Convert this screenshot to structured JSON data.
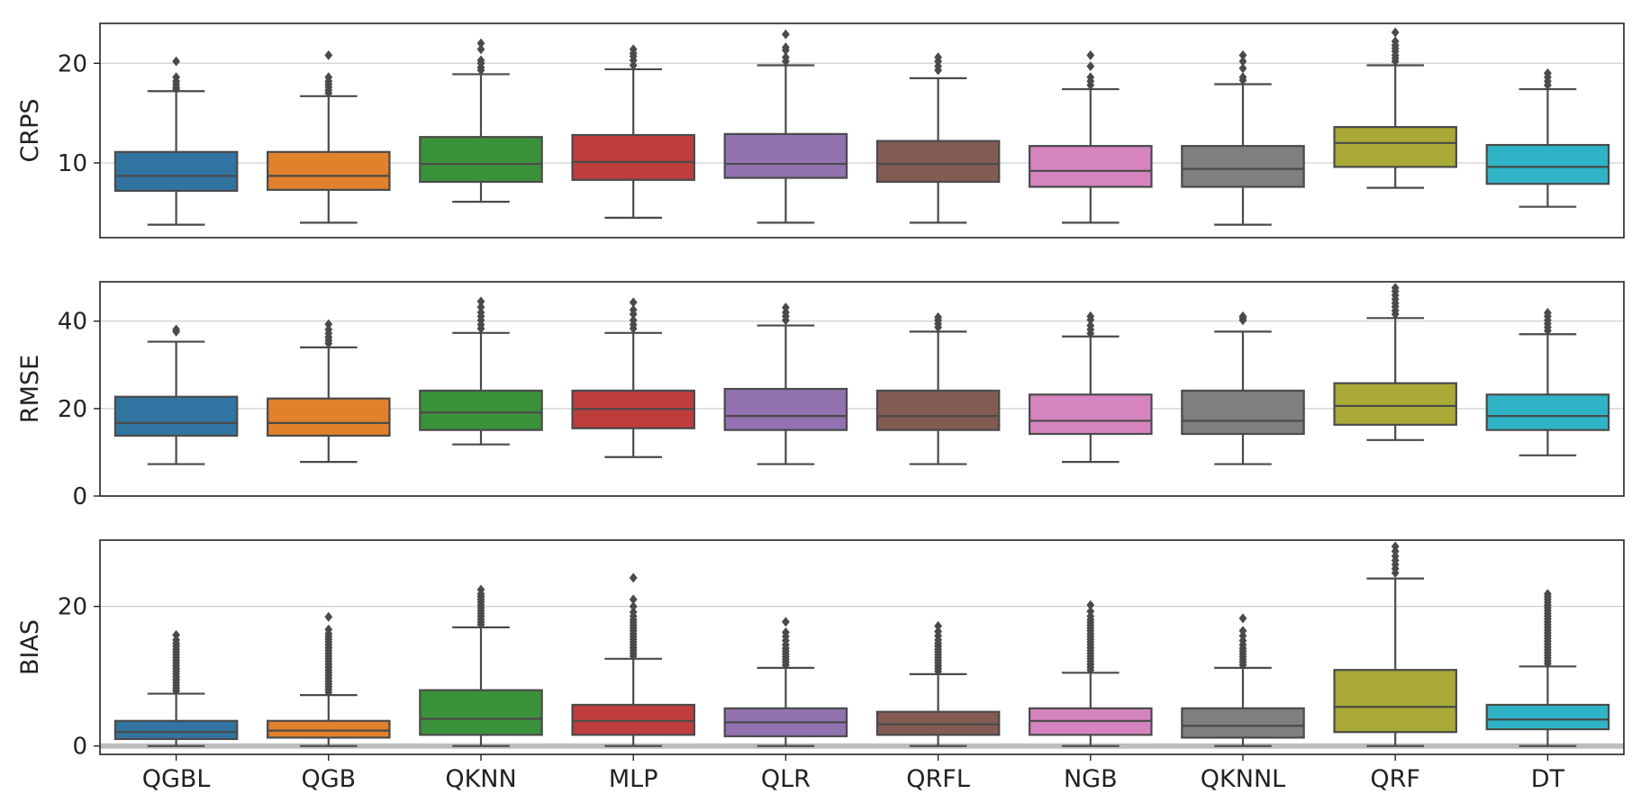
{
  "chart_data": {
    "type": "box",
    "categories": [
      "QGBL",
      "QGB",
      "QKNN",
      "MLP",
      "QLR",
      "QRFL",
      "NGB",
      "QKNNL",
      "QRF",
      "DT"
    ],
    "colors": [
      "#3274a1",
      "#e1812c",
      "#3a923a",
      "#c03d3e",
      "#9372b2",
      "#845b53",
      "#d684bd",
      "#7f7f7f",
      "#a9aa35",
      "#2eb4c6"
    ],
    "box_edge_color": "#4a4a4a",
    "grid": "y-major",
    "panels": [
      {
        "ylabel": "CRPS",
        "ylim": [
          2.5,
          24
        ],
        "yticks": [
          10,
          20
        ],
        "ytick_labels": [
          "10",
          "20"
        ],
        "boxes": [
          {
            "q1": 7.2,
            "median": 8.7,
            "q3": 11.1,
            "whisker_low": 3.8,
            "whisker_high": 17.2,
            "outliers": [
              17.4,
              17.6,
              17.9,
              18.2,
              18.6,
              20.2
            ]
          },
          {
            "q1": 7.3,
            "median": 8.7,
            "q3": 11.1,
            "whisker_low": 4.0,
            "whisker_high": 16.7,
            "outliers": [
              17.0,
              17.3,
              17.6,
              17.9,
              18.2,
              18.6,
              20.8
            ]
          },
          {
            "q1": 8.1,
            "median": 9.9,
            "q3": 12.6,
            "whisker_low": 6.1,
            "whisker_high": 18.9,
            "outliers": [
              19.3,
              19.6,
              20.0,
              20.3,
              21.4,
              22.0
            ]
          },
          {
            "q1": 8.3,
            "median": 10.1,
            "q3": 12.8,
            "whisker_low": 4.5,
            "whisker_high": 19.4,
            "outliers": [
              19.8,
              20.3,
              20.7,
              21.0,
              21.4
            ]
          },
          {
            "q1": 8.5,
            "median": 9.9,
            "q3": 12.9,
            "whisker_low": 4.0,
            "whisker_high": 19.8,
            "outliers": [
              20.2,
              20.6,
              21.3,
              21.6,
              22.9
            ]
          },
          {
            "q1": 8.1,
            "median": 9.9,
            "q3": 12.2,
            "whisker_low": 4.0,
            "whisker_high": 18.5,
            "outliers": [
              19.3,
              19.7,
              20.2,
              20.6
            ]
          },
          {
            "q1": 7.6,
            "median": 9.2,
            "q3": 11.7,
            "whisker_low": 4.0,
            "whisker_high": 17.4,
            "outliers": [
              17.8,
              18.2,
              18.6,
              19.7,
              20.8
            ]
          },
          {
            "q1": 7.6,
            "median": 9.4,
            "q3": 11.7,
            "whisker_low": 3.8,
            "whisker_high": 17.9,
            "outliers": [
              18.3,
              18.6,
              19.5,
              20.2,
              20.8
            ]
          },
          {
            "q1": 9.6,
            "median": 12.0,
            "q3": 13.6,
            "whisker_low": 7.5,
            "whisker_high": 19.8,
            "outliers": [
              20.2,
              20.5,
              20.8,
              21.2,
              21.5,
              21.8,
              22.2,
              23.1
            ]
          },
          {
            "q1": 7.9,
            "median": 9.6,
            "q3": 11.8,
            "whisker_low": 5.6,
            "whisker_high": 17.4,
            "outliers": [
              17.8,
              18.2,
              18.6,
              19.0
            ]
          }
        ]
      },
      {
        "ylabel": "RMSE",
        "ylim": [
          0,
          49
        ],
        "yticks": [
          0,
          20,
          40
        ],
        "ytick_labels": [
          "0",
          "20",
          "40"
        ],
        "boxes": [
          {
            "q1": 13.8,
            "median": 16.7,
            "q3": 22.7,
            "whisker_low": 7.3,
            "whisker_high": 35.3,
            "outliers": [
              37.6,
              38.1
            ]
          },
          {
            "q1": 13.8,
            "median": 16.7,
            "q3": 22.3,
            "whisker_low": 7.8,
            "whisker_high": 34.0,
            "outliers": [
              34.9,
              35.6,
              36.3,
              37.2,
              38.1,
              39.3
            ]
          },
          {
            "q1": 15.1,
            "median": 19.1,
            "q3": 24.1,
            "whisker_low": 11.8,
            "whisker_high": 37.3,
            "outliers": [
              38.3,
              39.2,
              40.2,
              41.1,
              42.0,
              43.2,
              44.5
            ]
          },
          {
            "q1": 15.5,
            "median": 19.9,
            "q3": 24.1,
            "whisker_low": 8.9,
            "whisker_high": 37.3,
            "outliers": [
              38.3,
              39.2,
              40.2,
              41.6,
              42.6,
              44.3
            ]
          },
          {
            "q1": 15.1,
            "median": 18.3,
            "q3": 24.5,
            "whisker_low": 7.3,
            "whisker_high": 39.0,
            "outliers": [
              40.2,
              41.1,
              42.0,
              43.1
            ]
          },
          {
            "q1": 15.1,
            "median": 18.3,
            "q3": 24.1,
            "whisker_low": 7.3,
            "whisker_high": 37.6,
            "outliers": [
              38.6,
              39.4,
              40.2,
              40.9
            ]
          },
          {
            "q1": 14.2,
            "median": 17.2,
            "q3": 23.2,
            "whisker_low": 7.8,
            "whisker_high": 36.5,
            "outliers": [
              37.2,
              38.1,
              39.0,
              40.3,
              41.1
            ]
          },
          {
            "q1": 14.2,
            "median": 17.2,
            "q3": 24.1,
            "whisker_low": 7.3,
            "whisker_high": 37.6,
            "outliers": [
              40.2,
              40.7,
              41.1
            ]
          },
          {
            "q1": 16.3,
            "median": 20.6,
            "q3": 25.8,
            "whisker_low": 12.8,
            "whisker_high": 40.7,
            "outliers": [
              41.6,
              42.4,
              43.3,
              44.1,
              45.0,
              45.9,
              46.8,
              47.6
            ]
          },
          {
            "q1": 15.1,
            "median": 18.3,
            "q3": 23.2,
            "whisker_low": 9.3,
            "whisker_high": 37.0,
            "outliers": [
              37.8,
              38.6,
              39.4,
              40.2,
              41.1,
              41.9
            ]
          }
        ]
      },
      {
        "ylabel": "BIAS",
        "ylim": [
          -1.2,
          29.5
        ],
        "yticks": [
          0,
          20
        ],
        "ytick_labels": [
          "0",
          "20"
        ],
        "zero_line": true,
        "boxes": [
          {
            "q1": 1.0,
            "median": 2.0,
            "q3": 3.6,
            "whisker_low": 0.0,
            "whisker_high": 7.5,
            "outliers": [
              7.9,
              8.3,
              8.7,
              9.1,
              9.5,
              9.9,
              10.3,
              10.7,
              11.1,
              11.5,
              11.9,
              12.3,
              12.7,
              13.1,
              13.5,
              13.9,
              14.3,
              14.7,
              15.2,
              15.9
            ]
          },
          {
            "q1": 1.2,
            "median": 2.2,
            "q3": 3.6,
            "whisker_low": 0.0,
            "whisker_high": 7.3,
            "outliers": [
              7.7,
              8.1,
              8.5,
              8.9,
              9.3,
              9.7,
              10.1,
              10.5,
              10.9,
              11.3,
              11.7,
              12.1,
              12.5,
              12.9,
              13.3,
              13.7,
              14.1,
              14.5,
              14.9,
              15.3,
              15.7,
              16.1,
              16.7,
              18.5
            ]
          },
          {
            "q1": 1.6,
            "median": 3.9,
            "q3": 8.0,
            "whisker_low": 0.0,
            "whisker_high": 17.0,
            "outliers": [
              17.4,
              17.8,
              18.2,
              18.6,
              19.0,
              19.4,
              19.8,
              20.2,
              20.6,
              21.0,
              21.4,
              21.8,
              22.4
            ]
          },
          {
            "q1": 1.6,
            "median": 3.6,
            "q3": 5.9,
            "whisker_low": 0.0,
            "whisker_high": 12.5,
            "outliers": [
              12.9,
              13.3,
              13.7,
              14.1,
              14.5,
              14.9,
              15.3,
              15.7,
              16.1,
              16.5,
              16.9,
              17.3,
              17.7,
              18.1,
              18.6,
              19.2,
              20.0,
              21.0,
              24.1
            ]
          },
          {
            "q1": 1.4,
            "median": 3.4,
            "q3": 5.4,
            "whisker_low": 0.0,
            "whisker_high": 11.2,
            "outliers": [
              11.6,
              12.0,
              12.4,
              12.8,
              13.2,
              13.6,
              14.0,
              14.5,
              15.1,
              15.7,
              16.3,
              17.8
            ]
          },
          {
            "q1": 1.6,
            "median": 3.1,
            "q3": 4.9,
            "whisker_low": 0.0,
            "whisker_high": 10.3,
            "outliers": [
              10.7,
              11.1,
              11.5,
              11.9,
              12.3,
              12.7,
              13.1,
              13.5,
              13.9,
              14.3,
              14.7,
              15.2,
              15.8,
              16.4,
              17.2
            ]
          },
          {
            "q1": 1.6,
            "median": 3.6,
            "q3": 5.4,
            "whisker_low": 0.0,
            "whisker_high": 10.5,
            "outliers": [
              10.9,
              11.3,
              11.7,
              12.1,
              12.5,
              12.9,
              13.3,
              13.7,
              14.1,
              14.5,
              14.9,
              15.3,
              15.7,
              16.1,
              16.5,
              16.9,
              17.3,
              17.7,
              18.1,
              18.6,
              19.3,
              20.2
            ]
          },
          {
            "q1": 1.2,
            "median": 2.9,
            "q3": 5.4,
            "whisker_low": 0.0,
            "whisker_high": 11.2,
            "outliers": [
              11.6,
              12.0,
              12.4,
              12.8,
              13.2,
              13.6,
              14.0,
              14.5,
              15.1,
              15.8,
              16.5,
              18.3
            ]
          },
          {
            "q1": 2.0,
            "median": 5.6,
            "q3": 10.9,
            "whisker_low": 0.0,
            "whisker_high": 24.0,
            "outliers": [
              24.8,
              25.4,
              26.0,
              26.6,
              27.2,
              27.9,
              28.6
            ]
          },
          {
            "q1": 2.4,
            "median": 3.8,
            "q3": 5.9,
            "whisker_low": 0.0,
            "whisker_high": 11.4,
            "outliers": [
              11.8,
              12.2,
              12.6,
              13.0,
              13.4,
              13.8,
              14.2,
              14.6,
              15.0,
              15.4,
              15.8,
              16.2,
              16.6,
              17.0,
              17.4,
              17.8,
              18.2,
              18.6,
              19.0,
              19.4,
              19.8,
              20.2,
              20.6,
              21.0,
              21.4,
              21.8
            ]
          }
        ]
      }
    ]
  }
}
